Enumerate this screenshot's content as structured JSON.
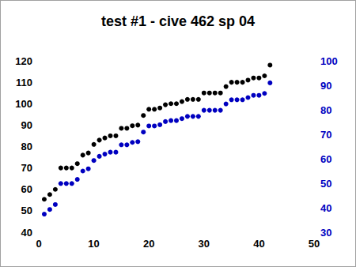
{
  "chart_data": {
    "type": "scatter",
    "title": "test #1 - cive 462 sp 04",
    "x": [
      1,
      2,
      3,
      4,
      5,
      6,
      7,
      8,
      9,
      10,
      11,
      12,
      13,
      14,
      15,
      16,
      17,
      18,
      19,
      20,
      21,
      22,
      23,
      24,
      25,
      26,
      27,
      28,
      29,
      30,
      31,
      32,
      33,
      34,
      35,
      36,
      37,
      38,
      39,
      40,
      41,
      42
    ],
    "series": [
      {
        "color": "#000000",
        "marker": "circle",
        "axis": "y",
        "values": [
          55.4,
          57.6,
          60,
          70,
          70,
          70,
          72,
          76,
          77,
          81,
          83,
          84,
          85,
          85,
          88.5,
          88.5,
          89.7,
          90,
          94.5,
          97.4,
          97.4,
          98,
          99.5,
          100,
          100,
          101,
          102,
          102,
          102,
          105,
          105,
          105,
          105,
          108,
          110,
          110,
          110,
          111,
          112,
          112,
          113,
          118
        ]
      },
      {
        "color": "#0000c0",
        "marker": "circle",
        "axis": "y2",
        "values": [
          37.4,
          39.3,
          41.3,
          49.9,
          49.9,
          49.9,
          51.6,
          55,
          55.9,
          59.3,
          61,
          61.9,
          62.7,
          62.7,
          65.7,
          65.7,
          66.7,
          67,
          70.9,
          73.4,
          73.4,
          73.9,
          75.2,
          75.6,
          75.6,
          76.4,
          77.3,
          77.3,
          77.3,
          79.8,
          79.8,
          79.8,
          79.8,
          82.4,
          84.1,
          84.1,
          84.1,
          85,
          85.9,
          85.9,
          86.7,
          91
        ]
      }
    ],
    "xlim": [
      0,
      50
    ],
    "xticks": [
      0,
      10,
      20,
      30,
      40,
      50
    ],
    "ylim": [
      40,
      120
    ],
    "yticks": [
      40,
      50,
      60,
      70,
      80,
      90,
      100,
      110,
      120
    ],
    "y2lim": [
      30,
      100
    ],
    "y2ticks": [
      30,
      40,
      50,
      60,
      70,
      80,
      90,
      100
    ],
    "grid": false
  }
}
